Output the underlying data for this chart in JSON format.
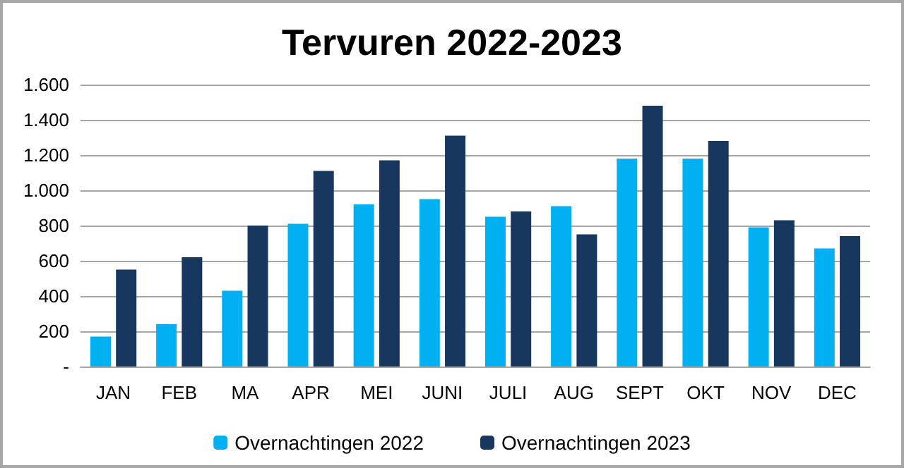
{
  "chart_data": {
    "type": "bar",
    "title": "Tervuren 2022-2023",
    "categories": [
      "JAN",
      "FEB",
      "MA",
      "APR",
      "MEI",
      "JUNI",
      "JULI",
      "AUG",
      "SEPT",
      "OKT",
      "NOV",
      "DEC"
    ],
    "series": [
      {
        "name": "Overnachtingen 2022",
        "color": "#00b0f0",
        "values": [
          170,
          240,
          430,
          810,
          920,
          950,
          850,
          910,
          1180,
          1180,
          790,
          670
        ]
      },
      {
        "name": "Overnachtingen 2023",
        "color": "#17375e",
        "values": [
          550,
          620,
          800,
          1110,
          1170,
          1310,
          880,
          750,
          1480,
          1280,
          830,
          740
        ]
      }
    ],
    "ylim": [
      0,
      1600
    ],
    "yticks": [
      {
        "value": 0,
        "label": "-"
      },
      {
        "value": 200,
        "label": "200"
      },
      {
        "value": 400,
        "label": "400"
      },
      {
        "value": 600,
        "label": "600"
      },
      {
        "value": 800,
        "label": "800"
      },
      {
        "value": 1000,
        "label": "1.000"
      },
      {
        "value": 1200,
        "label": "1.200"
      },
      {
        "value": 1400,
        "label": "1.400"
      },
      {
        "value": 1600,
        "label": "1.600"
      }
    ],
    "grid": "y",
    "legend": "bottom"
  }
}
